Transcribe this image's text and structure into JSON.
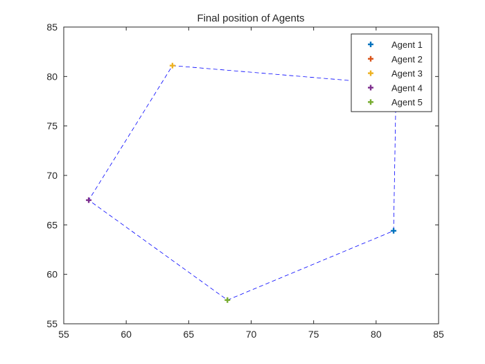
{
  "chart_data": {
    "type": "scatter",
    "title": "Final position of Agents",
    "xlabel": "",
    "ylabel": "",
    "xlim": [
      55,
      85
    ],
    "ylim": [
      55,
      85
    ],
    "xticks": [
      55,
      60,
      65,
      70,
      75,
      80,
      85
    ],
    "yticks": [
      55,
      60,
      65,
      70,
      75,
      80,
      85
    ],
    "grid": false,
    "legend_position": "top-right",
    "marker": "plus",
    "series": [
      {
        "name": "Agent 1",
        "color": "#0072BD",
        "x": 81.4,
        "y": 64.4
      },
      {
        "name": "Agent 2",
        "color": "#D95319",
        "x": 81.6,
        "y": 79.2
      },
      {
        "name": "Agent 3",
        "color": "#EDB120",
        "x": 63.7,
        "y": 81.1
      },
      {
        "name": "Agent 4",
        "color": "#7E2F8E",
        "x": 57.0,
        "y": 67.5
      },
      {
        "name": "Agent 5",
        "color": "#77AC30",
        "x": 68.1,
        "y": 57.4
      }
    ],
    "connection": {
      "style": "dashed",
      "color": "#0000FF",
      "order": [
        "Agent 1",
        "Agent 2",
        "Agent 3",
        "Agent 4",
        "Agent 5",
        "Agent 1"
      ]
    }
  }
}
